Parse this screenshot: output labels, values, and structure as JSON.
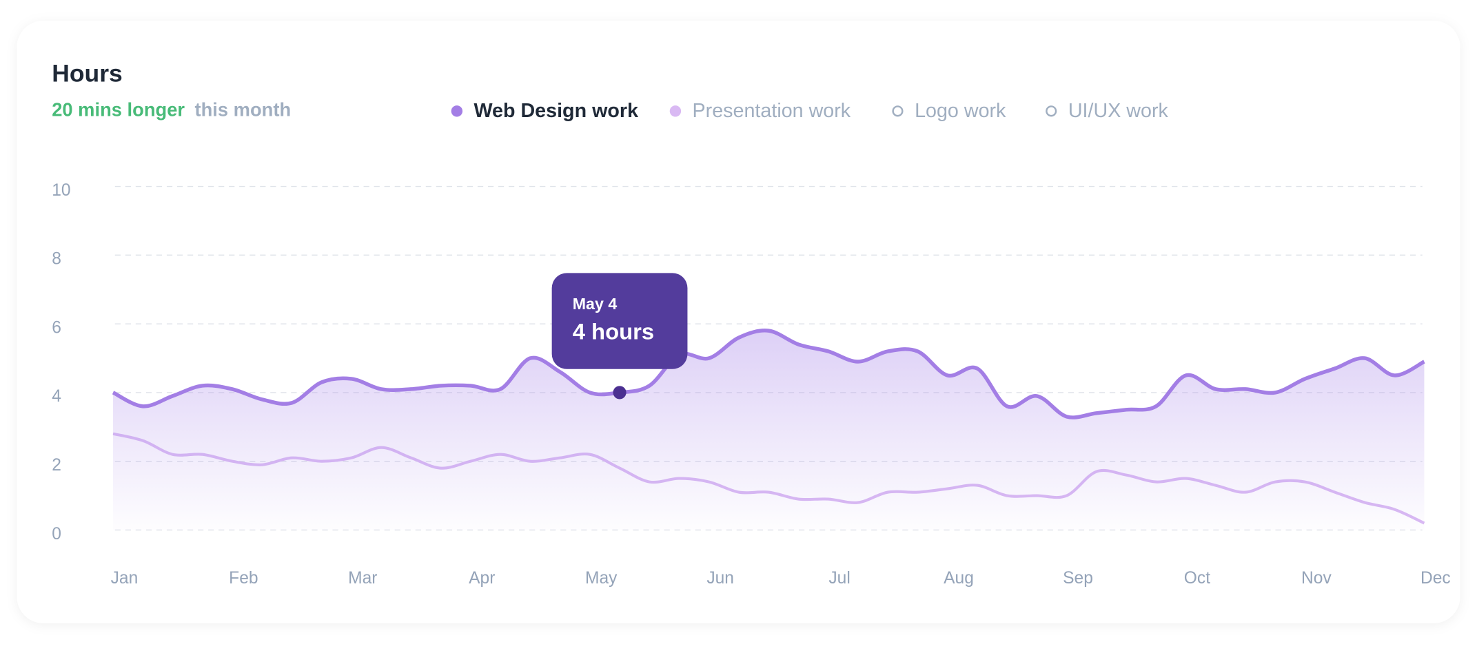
{
  "title": "Hours",
  "subtitle": {
    "highlight": "20 mins longer",
    "rest": "this month"
  },
  "chart_data": {
    "type": "line",
    "categories": [
      "Jan",
      null,
      null,
      null,
      "Feb",
      null,
      null,
      null,
      "Mar",
      null,
      null,
      null,
      "Apr",
      null,
      null,
      null,
      "May",
      null,
      null,
      null,
      "Jun",
      null,
      null,
      null,
      "Jul",
      null,
      null,
      null,
      "Aug",
      null,
      null,
      null,
      "Sep",
      null,
      null,
      null,
      "Oct",
      null,
      null,
      null,
      "Nov",
      null,
      null,
      null,
      "Dec"
    ],
    "series": [
      {
        "name": "Web Design work",
        "color": "#a37ee5",
        "values": [
          4.0,
          3.6,
          3.9,
          4.2,
          4.1,
          3.8,
          3.7,
          4.3,
          4.4,
          4.1,
          4.1,
          4.2,
          4.2,
          4.1,
          5.0,
          4.6,
          4.0,
          4.0,
          4.2,
          5.1,
          5.0,
          5.6,
          5.8,
          5.4,
          5.2,
          4.9,
          5.2,
          5.2,
          4.5,
          4.7,
          3.6,
          3.9,
          3.3,
          3.4,
          3.5,
          3.6,
          4.5,
          4.1,
          4.1,
          4.0,
          4.4,
          4.7,
          5.0,
          4.5,
          4.9
        ]
      },
      {
        "name": "Presentation work",
        "color": "#d9b9f3",
        "values": [
          2.8,
          2.6,
          2.2,
          2.2,
          2.0,
          1.9,
          2.1,
          2.0,
          2.1,
          2.4,
          2.1,
          1.8,
          2.0,
          2.2,
          2.0,
          2.1,
          2.2,
          1.8,
          1.4,
          1.5,
          1.4,
          1.1,
          1.1,
          0.9,
          0.9,
          0.8,
          1.1,
          1.1,
          1.2,
          1.3,
          1.0,
          1.0,
          1.0,
          1.7,
          1.6,
          1.4,
          1.5,
          1.3,
          1.1,
          1.4,
          1.4,
          1.1,
          0.8,
          0.6,
          0.2
        ]
      }
    ],
    "legend_hidden": [
      {
        "name": "Logo work"
      },
      {
        "name": "UI/UX work"
      }
    ],
    "ylim": [
      0,
      10
    ],
    "yticks": [
      0,
      2,
      4,
      6,
      8,
      10
    ],
    "grid": true,
    "tooltip": {
      "title": "May 4",
      "text": "4 hours"
    }
  }
}
